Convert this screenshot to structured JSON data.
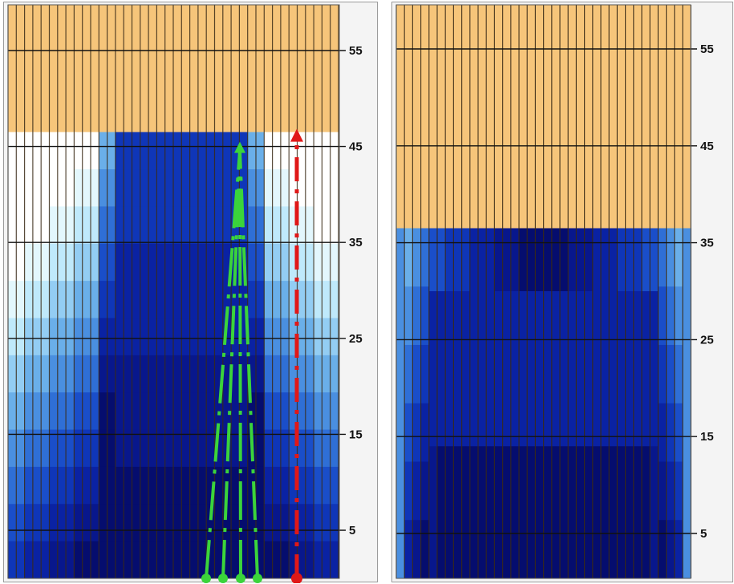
{
  "colors": {
    "background_sand": "#f6c57a",
    "stripe": "#3a2a16",
    "grid": "#111111",
    "axis_panel": "#f4f4f4",
    "blue_levels": [
      "#ffffff",
      "#e3f7fd",
      "#bfe9fb",
      "#93cdf3",
      "#6aafe9",
      "#4a8fe0",
      "#2f6fd6",
      "#1a4ec9",
      "#0f36b8",
      "#0a22a3",
      "#08178c",
      "#050d6e"
    ],
    "green_arrows": "#3bd43b",
    "red_arrow": "#e01818"
  },
  "left_panel": {
    "name": "left-field",
    "y_ticks": [
      "55",
      "45",
      "35",
      "25",
      "15",
      "5"
    ],
    "sand_top_level": 46.5,
    "green_path_count": 4,
    "red_path_count": 1
  },
  "right_panel": {
    "name": "right-field",
    "y_ticks": [
      "55",
      "45",
      "35",
      "25",
      "15",
      "5"
    ],
    "sand_top_level": 36.5
  }
}
